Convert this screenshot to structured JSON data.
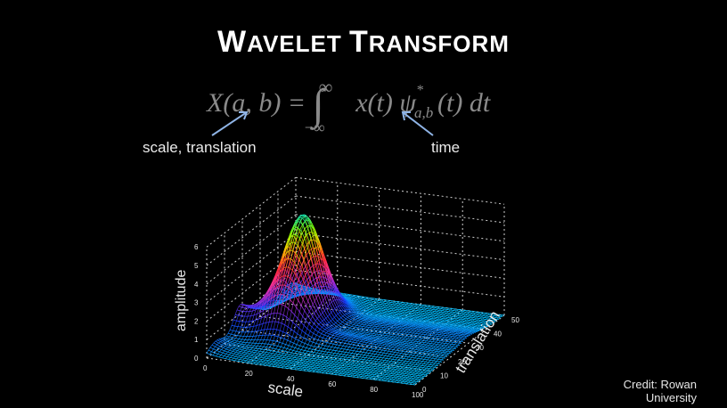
{
  "slide": {
    "title_caps": [
      "W",
      "AVELET ",
      "T",
      "RANSFORM"
    ],
    "formula": {
      "lhs": "X(a, b) = ",
      "integral_upper": "∞",
      "integral_lower": "−∞",
      "rhs_x": "x(t)",
      "psi": "ψ",
      "psi_super": "*",
      "psi_sub": "a,b",
      "psi_arg": "(t) dt"
    },
    "annotation_left": "scale, translation",
    "annotation_right": "time",
    "credit_line1": "Credit: Rowan",
    "credit_line2": "University"
  },
  "chart_data": {
    "type": "surface3d",
    "xlabel": "scale",
    "ylabel": "translation",
    "zlabel": "amplitude",
    "x_ticks": [
      "0",
      "20",
      "40",
      "60",
      "80",
      "100"
    ],
    "y_ticks": [
      "0",
      "10",
      "20",
      "30",
      "40",
      "50"
    ],
    "z_ticks": [
      "0",
      "1",
      "2",
      "3",
      "4",
      "5",
      "6"
    ],
    "xlim": [
      0,
      100
    ],
    "ylim": [
      0,
      50
    ],
    "zlim": [
      0,
      6
    ],
    "peak": {
      "scale": 22,
      "translation": 28,
      "amplitude": 5.6
    },
    "colormap": [
      "#00bfff",
      "#1a3cff",
      "#8a2be2",
      "#ff3399",
      "#ff2a2a",
      "#ffd000",
      "#7cff00",
      "#00e5cc"
    ]
  }
}
